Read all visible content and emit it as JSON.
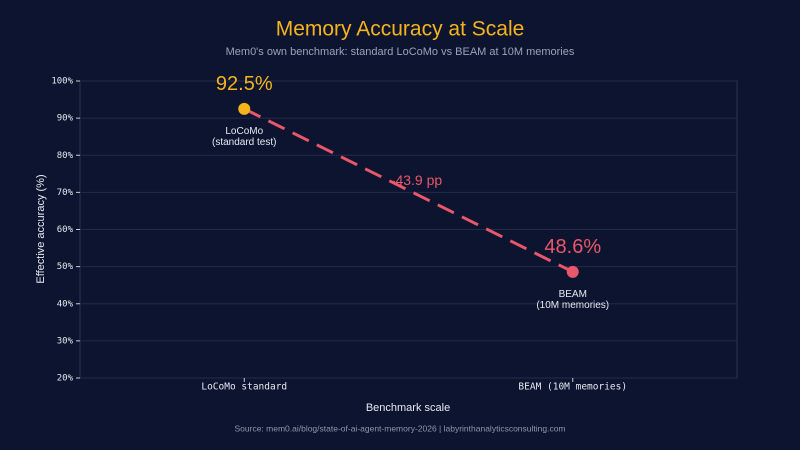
{
  "chart_data": {
    "type": "line",
    "title": "Memory Accuracy at Scale",
    "subtitle": "Mem0's own benchmark: standard LoCoMo vs BEAM at 10M memories",
    "y_label": "Effective accuracy (%)",
    "x_label": "Benchmark scale",
    "source": "Source: mem0.ai/blog/state-of-ai-agent-memory-2026  |  labyrinthanalyticsconsulting.com",
    "categories": [
      "LoCoMo standard",
      "BEAM (10M memories)"
    ],
    "values": [
      92.5,
      48.6
    ],
    "value_labels": [
      "92.5%",
      "48.6%"
    ],
    "point_labels": [
      [
        "LoCoMo",
        "(standard test)"
      ],
      [
        "BEAM",
        "(10M memories)"
      ]
    ],
    "point_colors": [
      "#f5b41c",
      "#e8576a"
    ],
    "line_color": "#e8576a",
    "annotation": "-43.9 pp",
    "ylim": [
      20,
      100
    ],
    "yticks": [
      {
        "value": 20,
        "label": "20%"
      },
      {
        "value": 30,
        "label": "30%"
      },
      {
        "value": 40,
        "label": "40%"
      },
      {
        "value": 50,
        "label": "50%"
      },
      {
        "value": 60,
        "label": "60%"
      },
      {
        "value": 70,
        "label": "70%"
      },
      {
        "value": 80,
        "label": "80%"
      },
      {
        "value": 90,
        "label": "90%"
      },
      {
        "value": 100,
        "label": "100%"
      }
    ],
    "grid": true
  }
}
